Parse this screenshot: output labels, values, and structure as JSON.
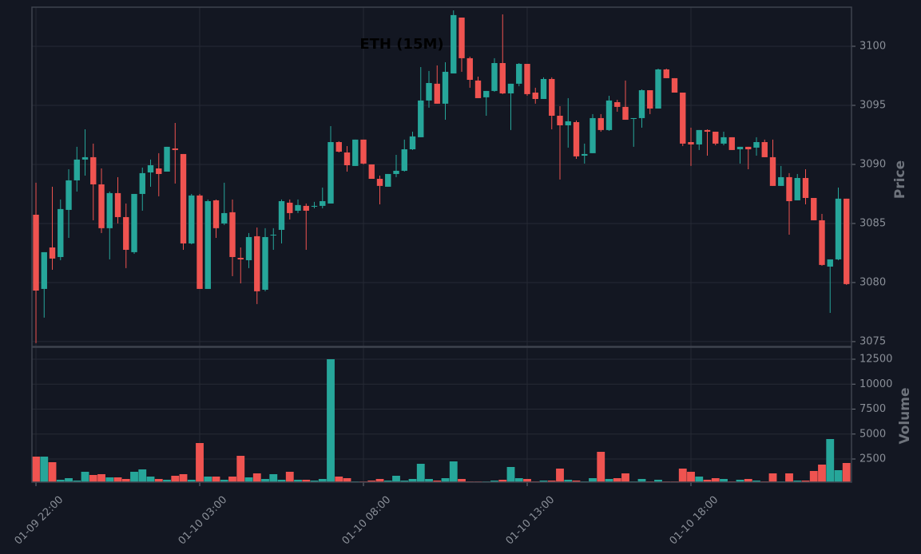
{
  "chart_data": {
    "type": "candlestick",
    "title": "ETH (15M)",
    "y_label": "Price",
    "volume_label": "Volume",
    "up_color": "#26a69a",
    "down_color": "#ef5350",
    "grid": true,
    "xlim": [
      -0.49,
      99.61
    ],
    "xticks": [
      {
        "value": 0,
        "label": "01-09 22:00"
      },
      {
        "value": 20,
        "label": "01-10 03:00"
      },
      {
        "value": 40,
        "label": "01-10 08:00"
      },
      {
        "value": 60,
        "label": "01-10 13:00"
      },
      {
        "value": 80,
        "label": "01-10 18:00"
      }
    ],
    "ylim": [
      3074.59,
      3103.31
    ],
    "yticks": [
      3075,
      3080,
      3085,
      3090,
      3095,
      3100
    ],
    "volume_ylim": [
      180,
      13700
    ],
    "volume_ticks": [
      2500,
      5000,
      7500,
      10000,
      12500
    ],
    "open": [
      3085.74,
      3079.46,
      3082.97,
      3082.16,
      3086.15,
      3088.65,
      3090.41,
      3090.61,
      3088.31,
      3084.6,
      3087.57,
      3085.54,
      3082.57,
      3087.5,
      3089.32,
      3089.66,
      3089.39,
      3091.35,
      3090.88,
      3083.31,
      3087.37,
      3079.46,
      3086.96,
      3085.0,
      3085.95,
      3082.09,
      3081.89,
      3083.92,
      3079.39,
      3083.99,
      3084.46,
      3086.76,
      3086.08,
      3086.49,
      3086.42,
      3086.49,
      3086.69,
      3091.89,
      3091.01,
      3089.87,
      3092.1,
      3090.0,
      3088.78,
      3088.11,
      3089.19,
      3089.46,
      3091.28,
      3092.3,
      3095.41,
      3096.83,
      3095.14,
      3097.7,
      3102.43,
      3098.99,
      3097.1,
      3095.68,
      3096.22,
      3098.58,
      3096.01,
      3096.83,
      3098.51,
      3096.08,
      3095.54,
      3097.23,
      3094.12,
      3093.31,
      3093.58,
      3090.74,
      3090.95,
      3093.92,
      3092.91,
      3095.27,
      3094.87,
      3093.85,
      3093.92,
      3096.28,
      3094.73,
      3098.04,
      3097.3,
      3096.08,
      3091.89,
      3091.69,
      3092.91,
      3092.77,
      3091.76,
      3092.3,
      3091.28,
      3091.49,
      3091.42,
      3091.89,
      3090.61,
      3088.18,
      3088.92,
      3086.96,
      3088.85,
      3087.16,
      3085.27,
      3081.35,
      3081.96,
      3087.1
    ],
    "high": [
      3088.45,
      3082.57,
      3088.11,
      3087.03,
      3089.59,
      3091.49,
      3092.97,
      3091.76,
      3089.66,
      3087.7,
      3088.92,
      3086.69,
      3087.5,
      3089.73,
      3090.41,
      3090.95,
      3091.49,
      3093.51,
      3090.88,
      3087.5,
      3087.5,
      3087.03,
      3087.03,
      3088.45,
      3087.03,
      3082.97,
      3084.19,
      3084.66,
      3084.6,
      3084.6,
      3087.03,
      3087.03,
      3087.03,
      3086.69,
      3086.83,
      3088.04,
      3093.24,
      3091.96,
      3091.55,
      3092.1,
      3092.1,
      3090.0,
      3089.05,
      3089.19,
      3090.81,
      3092.1,
      3092.77,
      3098.24,
      3097.91,
      3098.38,
      3098.65,
      3103.04,
      3102.43,
      3099.12,
      3097.43,
      3096.22,
      3098.99,
      3102.7,
      3096.83,
      3098.58,
      3098.51,
      3096.49,
      3097.37,
      3097.37,
      3094.93,
      3095.61,
      3093.72,
      3091.76,
      3094.26,
      3094.26,
      3095.81,
      3095.47,
      3097.1,
      3093.92,
      3096.35,
      3096.28,
      3098.11,
      3098.11,
      3097.3,
      3096.08,
      3093.11,
      3092.91,
      3092.97,
      3092.77,
      3092.77,
      3092.3,
      3091.49,
      3091.49,
      3092.3,
      3092.1,
      3092.1,
      3089.87,
      3089.26,
      3089.19,
      3089.59,
      3087.16,
      3085.81,
      3081.96,
      3088.04,
      3087.1
    ],
    "low": [
      3074.87,
      3077.03,
      3081.08,
      3081.89,
      3083.78,
      3087.7,
      3089.05,
      3085.27,
      3084.19,
      3081.96,
      3085.0,
      3081.22,
      3082.43,
      3086.08,
      3088.11,
      3087.3,
      3089.39,
      3088.38,
      3082.77,
      3083.24,
      3079.46,
      3079.46,
      3083.78,
      3084.87,
      3080.54,
      3079.93,
      3081.22,
      3078.18,
      3079.26,
      3082.77,
      3083.31,
      3085.34,
      3085.88,
      3082.77,
      3086.28,
      3086.28,
      3086.69,
      3091.01,
      3089.39,
      3089.87,
      3090.0,
      3088.78,
      3086.62,
      3088.11,
      3088.92,
      3089.39,
      3091.22,
      3092.3,
      3094.8,
      3095.14,
      3093.78,
      3097.7,
      3097.84,
      3096.49,
      3095.61,
      3094.12,
      3096.15,
      3095.95,
      3092.91,
      3096.62,
      3095.81,
      3095.14,
      3095.54,
      3092.97,
      3088.72,
      3091.42,
      3090.47,
      3090.07,
      3090.95,
      3092.77,
      3092.84,
      3094.46,
      3093.78,
      3091.49,
      3093.11,
      3094.26,
      3094.73,
      3097.3,
      3096.08,
      3091.55,
      3089.87,
      3091.22,
      3090.74,
      3091.62,
      3091.62,
      3091.22,
      3090.07,
      3089.59,
      3090.74,
      3090.61,
      3088.18,
      3088.18,
      3084.05,
      3086.96,
      3086.62,
      3085.27,
      3081.42,
      3077.43,
      3081.89,
      3079.8
    ],
    "close": [
      3079.32,
      3082.57,
      3082.03,
      3086.22,
      3088.65,
      3090.41,
      3090.61,
      3088.31,
      3084.6,
      3087.57,
      3085.54,
      3082.77,
      3087.5,
      3089.26,
      3089.93,
      3089.19,
      3091.49,
      3091.22,
      3083.31,
      3087.37,
      3079.46,
      3086.89,
      3084.6,
      3085.88,
      3082.16,
      3081.96,
      3083.85,
      3079.26,
      3083.85,
      3084.05,
      3086.89,
      3085.88,
      3086.56,
      3086.08,
      3086.49,
      3086.89,
      3091.89,
      3091.08,
      3089.93,
      3092.1,
      3090.07,
      3088.78,
      3088.18,
      3089.19,
      3089.46,
      3091.28,
      3092.37,
      3095.41,
      3096.89,
      3095.14,
      3097.84,
      3102.64,
      3098.99,
      3097.16,
      3095.61,
      3096.22,
      3098.58,
      3096.01,
      3096.83,
      3098.51,
      3095.95,
      3095.54,
      3097.23,
      3094.12,
      3093.31,
      3093.65,
      3090.68,
      3090.88,
      3093.92,
      3092.91,
      3095.41,
      3094.87,
      3093.78,
      3093.92,
      3096.28,
      3094.73,
      3098.04,
      3097.3,
      3096.08,
      3091.76,
      3091.69,
      3092.91,
      3092.77,
      3091.76,
      3092.3,
      3091.22,
      3091.49,
      3091.28,
      3091.89,
      3090.61,
      3088.18,
      3088.92,
      3086.89,
      3088.85,
      3087.16,
      3085.27,
      3081.49,
      3081.96,
      3087.1,
      3079.87
    ],
    "volume": [
      2740,
      2740,
      2180,
      420,
      580,
      340,
      1220,
      900,
      980,
      660,
      660,
      500,
      1220,
      1460,
      740,
      500,
      420,
      820,
      980,
      420,
      4100,
      740,
      740,
      420,
      740,
      2820,
      660,
      1060,
      500,
      980,
      420,
      1220,
      420,
      420,
      340,
      500,
      12500,
      740,
      580,
      260,
      260,
      340,
      500,
      340,
      820,
      340,
      500,
      2020,
      500,
      340,
      580,
      2260,
      500,
      260,
      260,
      260,
      340,
      420,
      1700,
      580,
      500,
      260,
      340,
      340,
      1540,
      420,
      340,
      260,
      580,
      3220,
      500,
      580,
      1060,
      260,
      500,
      260,
      420,
      260,
      260,
      1540,
      1220,
      740,
      420,
      580,
      500,
      260,
      420,
      500,
      340,
      260,
      1060,
      260,
      1060,
      340,
      340,
      1300,
      1940,
      4500,
      1380,
      2100
    ]
  }
}
